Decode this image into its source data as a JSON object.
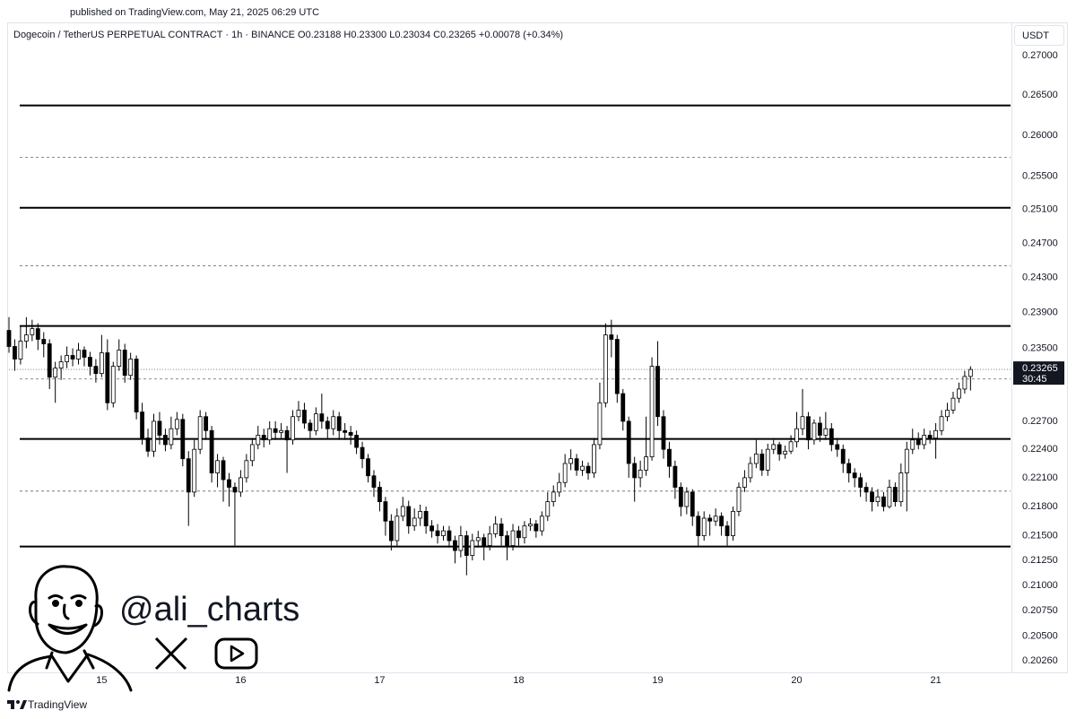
{
  "chart_data": {
    "type": "candlestick",
    "published": "published on TradingView.com, May 21, 2025 06:29 UTC",
    "title": "Dogecoin / TetherUS PERPETUAL CONTRACT · 1h · BINANCE  O0.23188 H0.23300 L0.23034 C0.23265 +0.00078 (+0.34%)",
    "y_unit": "USDT",
    "handle": "@ali_charts",
    "footer": "TradingView",
    "log_scale": true,
    "grid": false,
    "up_color": "#ffffff",
    "down_color": "#000000",
    "wick_color": "#000000",
    "ylim": [
      0.2015,
      0.2743
    ],
    "yticks": [
      {
        "value": 0.27,
        "label": "0.27000"
      },
      {
        "value": 0.265,
        "label": "0.26500"
      },
      {
        "value": 0.26,
        "label": "0.26000"
      },
      {
        "value": 0.255,
        "label": "0.25500"
      },
      {
        "value": 0.251,
        "label": "0.25100"
      },
      {
        "value": 0.247,
        "label": "0.24700"
      },
      {
        "value": 0.243,
        "label": "0.24300"
      },
      {
        "value": 0.239,
        "label": "0.23900"
      },
      {
        "value": 0.235,
        "label": "0.23500"
      },
      {
        "value": 0.227,
        "label": "0.22700"
      },
      {
        "value": 0.224,
        "label": "0.22400"
      },
      {
        "value": 0.221,
        "label": "0.22100"
      },
      {
        "value": 0.218,
        "label": "0.21800"
      },
      {
        "value": 0.215,
        "label": "0.21500"
      },
      {
        "value": 0.2125,
        "label": "0.21250"
      },
      {
        "value": 0.21,
        "label": "0.21000"
      },
      {
        "value": 0.2075,
        "label": "0.20750"
      },
      {
        "value": 0.205,
        "label": "0.20500"
      },
      {
        "value": 0.2026,
        "label": "0.20260"
      }
    ],
    "last_price": {
      "value": 0.23265,
      "countdown": "30:45"
    },
    "levels": [
      {
        "value": 0.2637,
        "style": "solid"
      },
      {
        "value": 0.2573,
        "style": "dashed"
      },
      {
        "value": 0.2512,
        "style": "solid"
      },
      {
        "value": 0.2444,
        "style": "dashed"
      },
      {
        "value": 0.2375,
        "style": "solid"
      },
      {
        "value": 0.2316,
        "style": "dashed"
      },
      {
        "value": 0.2251,
        "style": "solid"
      },
      {
        "value": 0.2196,
        "style": "dashed"
      },
      {
        "value": 0.2139,
        "style": "solid"
      }
    ],
    "categories": [
      null,
      null,
      null,
      null,
      null,
      null,
      null,
      null,
      null,
      null,
      null,
      null,
      null,
      null,
      null,
      null,
      "15",
      null,
      null,
      null,
      null,
      null,
      null,
      null,
      null,
      null,
      null,
      null,
      null,
      null,
      null,
      null,
      null,
      null,
      null,
      null,
      null,
      null,
      null,
      null,
      "16",
      null,
      null,
      null,
      null,
      null,
      null,
      null,
      null,
      null,
      null,
      null,
      null,
      null,
      null,
      null,
      null,
      null,
      null,
      null,
      null,
      null,
      null,
      null,
      "17",
      null,
      null,
      null,
      null,
      null,
      null,
      null,
      null,
      null,
      null,
      null,
      null,
      null,
      null,
      null,
      null,
      null,
      null,
      null,
      null,
      null,
      null,
      null,
      "18",
      null,
      null,
      null,
      null,
      null,
      null,
      null,
      null,
      null,
      null,
      null,
      null,
      null,
      null,
      null,
      null,
      null,
      null,
      null,
      null,
      null,
      null,
      null,
      "19",
      null,
      null,
      null,
      null,
      null,
      null,
      null,
      null,
      null,
      null,
      null,
      null,
      null,
      null,
      null,
      null,
      null,
      null,
      null,
      null,
      null,
      null,
      null,
      "20",
      null,
      null,
      null,
      null,
      null,
      null,
      null,
      null,
      null,
      null,
      null,
      null,
      null,
      null,
      null,
      null,
      null,
      null,
      null,
      null,
      null,
      null,
      null,
      "21",
      null,
      null,
      null,
      null,
      null,
      null
    ],
    "candles": [
      [
        0.237,
        0.2385,
        0.2345,
        0.2352
      ],
      [
        0.2352,
        0.236,
        0.2325,
        0.2338
      ],
      [
        0.2338,
        0.2375,
        0.2332,
        0.2358
      ],
      [
        0.2358,
        0.2385,
        0.235,
        0.2365
      ],
      [
        0.2365,
        0.2382,
        0.2358,
        0.2372
      ],
      [
        0.2372,
        0.2378,
        0.2348,
        0.236
      ],
      [
        0.236,
        0.2368,
        0.234,
        0.2355
      ],
      [
        0.2355,
        0.236,
        0.2305,
        0.2318
      ],
      [
        0.2318,
        0.2335,
        0.229,
        0.2328
      ],
      [
        0.2328,
        0.2342,
        0.2315,
        0.2335
      ],
      [
        0.2335,
        0.2352,
        0.2328,
        0.2342
      ],
      [
        0.2342,
        0.235,
        0.233,
        0.2338
      ],
      [
        0.2338,
        0.2356,
        0.2332,
        0.2348
      ],
      [
        0.2348,
        0.2352,
        0.233,
        0.234
      ],
      [
        0.234,
        0.2346,
        0.232,
        0.233
      ],
      [
        0.233,
        0.2338,
        0.2312,
        0.2322
      ],
      [
        0.2322,
        0.2365,
        0.2318,
        0.2345
      ],
      [
        0.2345,
        0.236,
        0.2282,
        0.229
      ],
      [
        0.229,
        0.2335,
        0.2285,
        0.233
      ],
      [
        0.233,
        0.236,
        0.2325,
        0.2348
      ],
      [
        0.2348,
        0.2355,
        0.2312,
        0.232
      ],
      [
        0.232,
        0.2345,
        0.2315,
        0.2338
      ],
      [
        0.2338,
        0.2342,
        0.2272,
        0.228
      ],
      [
        0.228,
        0.229,
        0.2245,
        0.2252
      ],
      [
        0.2252,
        0.2262,
        0.2232,
        0.2238
      ],
      [
        0.2238,
        0.2278,
        0.2232,
        0.227
      ],
      [
        0.227,
        0.228,
        0.2245,
        0.2255
      ],
      [
        0.2255,
        0.2262,
        0.2238,
        0.2245
      ],
      [
        0.2245,
        0.2275,
        0.224,
        0.2262
      ],
      [
        0.2262,
        0.228,
        0.2255,
        0.2272
      ],
      [
        0.2272,
        0.2278,
        0.2222,
        0.223
      ],
      [
        0.223,
        0.2238,
        0.216,
        0.2195
      ],
      [
        0.2195,
        0.225,
        0.219,
        0.224
      ],
      [
        0.224,
        0.2282,
        0.2235,
        0.2275
      ],
      [
        0.2275,
        0.228,
        0.225,
        0.226
      ],
      [
        0.226,
        0.2265,
        0.2205,
        0.2215
      ],
      [
        0.2215,
        0.2235,
        0.22,
        0.2228
      ],
      [
        0.2228,
        0.2232,
        0.2185,
        0.2208
      ],
      [
        0.2208,
        0.2215,
        0.218,
        0.22
      ],
      [
        0.22,
        0.2205,
        0.214,
        0.2195
      ],
      [
        0.2195,
        0.2218,
        0.219,
        0.221
      ],
      [
        0.221,
        0.2235,
        0.2205,
        0.2228
      ],
      [
        0.2228,
        0.2252,
        0.2222,
        0.2245
      ],
      [
        0.2245,
        0.2265,
        0.224,
        0.2255
      ],
      [
        0.2255,
        0.2262,
        0.2242,
        0.225
      ],
      [
        0.225,
        0.227,
        0.2245,
        0.2262
      ],
      [
        0.2262,
        0.227,
        0.225,
        0.2258
      ],
      [
        0.2258,
        0.2268,
        0.2252,
        0.226
      ],
      [
        0.226,
        0.2265,
        0.2215,
        0.225
      ],
      [
        0.225,
        0.2282,
        0.2245,
        0.2275
      ],
      [
        0.2275,
        0.2292,
        0.227,
        0.2282
      ],
      [
        0.2282,
        0.229,
        0.2262,
        0.2268
      ],
      [
        0.2268,
        0.2272,
        0.2252,
        0.226
      ],
      [
        0.226,
        0.2285,
        0.2255,
        0.2278
      ],
      [
        0.2278,
        0.23,
        0.2262,
        0.227
      ],
      [
        0.227,
        0.2275,
        0.2252,
        0.2262
      ],
      [
        0.2262,
        0.2282,
        0.2255,
        0.2275
      ],
      [
        0.2275,
        0.228,
        0.225,
        0.226
      ],
      [
        0.226,
        0.2268,
        0.225,
        0.2258
      ],
      [
        0.2258,
        0.2265,
        0.2245,
        0.2255
      ],
      [
        0.2255,
        0.226,
        0.2235,
        0.2242
      ],
      [
        0.2242,
        0.2248,
        0.222,
        0.223
      ],
      [
        0.223,
        0.2235,
        0.2205,
        0.2212
      ],
      [
        0.2212,
        0.2218,
        0.219,
        0.22
      ],
      [
        0.22,
        0.2206,
        0.2175,
        0.2185
      ],
      [
        0.2185,
        0.219,
        0.215,
        0.2165
      ],
      [
        0.2165,
        0.2172,
        0.2135,
        0.2145
      ],
      [
        0.2145,
        0.2178,
        0.214,
        0.217
      ],
      [
        0.217,
        0.219,
        0.2165,
        0.218
      ],
      [
        0.218,
        0.2186,
        0.2152,
        0.216
      ],
      [
        0.216,
        0.2178,
        0.2155,
        0.2168
      ],
      [
        0.2168,
        0.2182,
        0.216,
        0.2175
      ],
      [
        0.2175,
        0.218,
        0.2152,
        0.216
      ],
      [
        0.216,
        0.2166,
        0.2148,
        0.2155
      ],
      [
        0.2155,
        0.2162,
        0.2142,
        0.215
      ],
      [
        0.215,
        0.216,
        0.2145,
        0.2155
      ],
      [
        0.2155,
        0.216,
        0.2138,
        0.2145
      ],
      [
        0.2145,
        0.215,
        0.2122,
        0.2135
      ],
      [
        0.2135,
        0.216,
        0.2128,
        0.215
      ],
      [
        0.215,
        0.2155,
        0.211,
        0.213
      ],
      [
        0.213,
        0.2152,
        0.2125,
        0.2145
      ],
      [
        0.2145,
        0.2155,
        0.2138,
        0.2148
      ],
      [
        0.2148,
        0.2152,
        0.2125,
        0.214
      ],
      [
        0.214,
        0.216,
        0.2135,
        0.2152
      ],
      [
        0.2152,
        0.217,
        0.2148,
        0.2162
      ],
      [
        0.2162,
        0.2168,
        0.214,
        0.215
      ],
      [
        0.215,
        0.2155,
        0.2125,
        0.214
      ],
      [
        0.214,
        0.2162,
        0.2135,
        0.2155
      ],
      [
        0.2155,
        0.216,
        0.214,
        0.2148
      ],
      [
        0.2148,
        0.2165,
        0.2142,
        0.216
      ],
      [
        0.216,
        0.2168,
        0.2155,
        0.2162
      ],
      [
        0.2162,
        0.2166,
        0.2148,
        0.2155
      ],
      [
        0.2155,
        0.2175,
        0.215,
        0.217
      ],
      [
        0.217,
        0.2195,
        0.2165,
        0.2185
      ],
      [
        0.2185,
        0.2202,
        0.218,
        0.2195
      ],
      [
        0.2195,
        0.2215,
        0.219,
        0.2205
      ],
      [
        0.2205,
        0.2235,
        0.22,
        0.2225
      ],
      [
        0.2225,
        0.224,
        0.2218,
        0.223
      ],
      [
        0.223,
        0.2235,
        0.2212,
        0.2218
      ],
      [
        0.2218,
        0.2228,
        0.2212,
        0.2222
      ],
      [
        0.2222,
        0.2226,
        0.2208,
        0.2215
      ],
      [
        0.2215,
        0.2252,
        0.221,
        0.2245
      ],
      [
        0.2245,
        0.2312,
        0.224,
        0.229
      ],
      [
        0.229,
        0.2378,
        0.2285,
        0.2365
      ],
      [
        0.2365,
        0.2382,
        0.234,
        0.236
      ],
      [
        0.236,
        0.2365,
        0.229,
        0.23
      ],
      [
        0.23,
        0.2305,
        0.226,
        0.227
      ],
      [
        0.227,
        0.2275,
        0.221,
        0.2225
      ],
      [
        0.2225,
        0.2232,
        0.2185,
        0.221
      ],
      [
        0.221,
        0.2228,
        0.22,
        0.2218
      ],
      [
        0.2218,
        0.2275,
        0.2212,
        0.2232
      ],
      [
        0.2232,
        0.234,
        0.2228,
        0.233
      ],
      [
        0.233,
        0.2358,
        0.2265,
        0.2275
      ],
      [
        0.2275,
        0.2282,
        0.223,
        0.224
      ],
      [
        0.224,
        0.2248,
        0.221,
        0.2222
      ],
      [
        0.2222,
        0.2228,
        0.2188,
        0.22
      ],
      [
        0.22,
        0.2205,
        0.217,
        0.218
      ],
      [
        0.218,
        0.22,
        0.2172,
        0.2195
      ],
      [
        0.2195,
        0.2198,
        0.216,
        0.217
      ],
      [
        0.217,
        0.2175,
        0.214,
        0.215
      ],
      [
        0.215,
        0.2175,
        0.2145,
        0.2168
      ],
      [
        0.2168,
        0.2172,
        0.215,
        0.2165
      ],
      [
        0.2165,
        0.2178,
        0.216,
        0.217
      ],
      [
        0.217,
        0.2174,
        0.215,
        0.216
      ],
      [
        0.216,
        0.2165,
        0.214,
        0.215
      ],
      [
        0.215,
        0.218,
        0.2145,
        0.2175
      ],
      [
        0.2175,
        0.2205,
        0.217,
        0.22
      ],
      [
        0.22,
        0.2218,
        0.2195,
        0.221
      ],
      [
        0.221,
        0.2232,
        0.2205,
        0.2225
      ],
      [
        0.2225,
        0.225,
        0.222,
        0.2235
      ],
      [
        0.2235,
        0.224,
        0.2212,
        0.2218
      ],
      [
        0.2218,
        0.2246,
        0.2212,
        0.224
      ],
      [
        0.224,
        0.225,
        0.2235,
        0.2245
      ],
      [
        0.2245,
        0.2248,
        0.2228,
        0.2235
      ],
      [
        0.2235,
        0.2244,
        0.223,
        0.2238
      ],
      [
        0.2238,
        0.2255,
        0.2235,
        0.2248
      ],
      [
        0.2248,
        0.228,
        0.2242,
        0.2262
      ],
      [
        0.2262,
        0.2305,
        0.2255,
        0.2275
      ],
      [
        0.2275,
        0.228,
        0.224,
        0.225
      ],
      [
        0.225,
        0.2272,
        0.2245,
        0.2268
      ],
      [
        0.2268,
        0.2275,
        0.2248,
        0.2255
      ],
      [
        0.2255,
        0.228,
        0.225,
        0.2262
      ],
      [
        0.2262,
        0.2268,
        0.2238,
        0.2245
      ],
      [
        0.2245,
        0.2252,
        0.2232,
        0.224
      ],
      [
        0.224,
        0.2245,
        0.2215,
        0.2225
      ],
      [
        0.2225,
        0.223,
        0.2205,
        0.2215
      ],
      [
        0.2215,
        0.222,
        0.22,
        0.221
      ],
      [
        0.221,
        0.2215,
        0.219,
        0.22
      ],
      [
        0.22,
        0.2205,
        0.2185,
        0.2195
      ],
      [
        0.2195,
        0.22,
        0.2175,
        0.2185
      ],
      [
        0.2185,
        0.2198,
        0.218,
        0.219
      ],
      [
        0.219,
        0.2195,
        0.2175,
        0.218
      ],
      [
        0.218,
        0.2208,
        0.2178,
        0.22
      ],
      [
        0.22,
        0.2205,
        0.218,
        0.2185
      ],
      [
        0.2185,
        0.2225,
        0.218,
        0.2215
      ],
      [
        0.2215,
        0.2248,
        0.2175,
        0.224
      ],
      [
        0.224,
        0.2262,
        0.2235,
        0.225
      ],
      [
        0.225,
        0.2258,
        0.224,
        0.2245
      ],
      [
        0.2245,
        0.2262,
        0.224,
        0.2255
      ],
      [
        0.2255,
        0.226,
        0.2246,
        0.2252
      ],
      [
        0.2252,
        0.2268,
        0.223,
        0.226
      ],
      [
        0.226,
        0.2282,
        0.2255,
        0.2275
      ],
      [
        0.2275,
        0.229,
        0.227,
        0.2282
      ],
      [
        0.2282,
        0.2302,
        0.2278,
        0.2295
      ],
      [
        0.2295,
        0.2312,
        0.229,
        0.2305
      ],
      [
        0.2305,
        0.2325,
        0.23,
        0.23188
      ],
      [
        0.23188,
        0.233,
        0.23034,
        0.23265
      ]
    ]
  }
}
